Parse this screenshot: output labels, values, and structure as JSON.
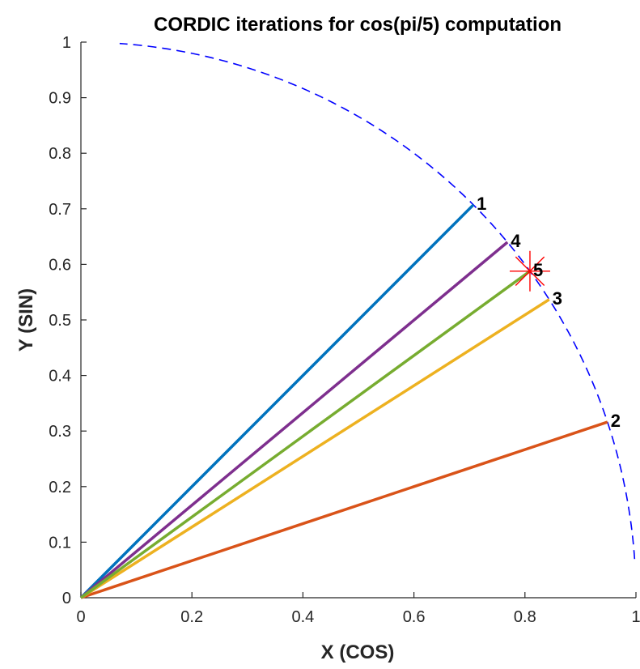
{
  "chart_data": {
    "type": "line",
    "title": "CORDIC iterations for cos(pi/5) computation",
    "xlabel": "X (COS)",
    "ylabel": "Y (SIN)",
    "xlim": [
      0,
      1
    ],
    "ylim": [
      0,
      1
    ],
    "xticks": [
      0,
      0.2,
      0.4,
      0.6,
      0.8,
      1
    ],
    "xtick_labels": [
      "0",
      "0.2",
      "0.4",
      "0.6",
      "0.8",
      "1"
    ],
    "yticks": [
      0,
      0.1,
      0.2,
      0.3,
      0.4,
      0.5,
      0.6,
      0.7,
      0.8,
      0.9,
      1
    ],
    "ytick_labels": [
      "0",
      "0.1",
      "0.2",
      "0.3",
      "0.4",
      "0.5",
      "0.6",
      "0.7",
      "0.8",
      "0.9",
      "1"
    ],
    "grid": false,
    "legend": "none",
    "unit_circle": {
      "style": "dashed",
      "color": "#0000ff",
      "theta_start_deg": 4,
      "theta_end_deg": 86
    },
    "series": [
      {
        "label": "1",
        "color": "#0072bd",
        "x": [
          0,
          0.7071
        ],
        "y": [
          0,
          0.7071
        ]
      },
      {
        "label": "2",
        "color": "#d95319",
        "x": [
          0,
          0.9487
        ],
        "y": [
          0,
          0.3162
        ]
      },
      {
        "label": "3",
        "color": "#edb120",
        "x": [
          0,
          0.8437
        ],
        "y": [
          0,
          0.5368
        ]
      },
      {
        "label": "4",
        "color": "#7e2f8e",
        "x": [
          0,
          0.7685
        ],
        "y": [
          0,
          0.6399
        ]
      },
      {
        "label": "5",
        "color": "#77ac30",
        "x": [
          0,
          0.809
        ],
        "y": [
          0,
          0.5878
        ]
      }
    ],
    "marker": {
      "x": 0.809,
      "y": 0.5878,
      "symbol": "asterisk",
      "color": "#ff0000"
    }
  }
}
